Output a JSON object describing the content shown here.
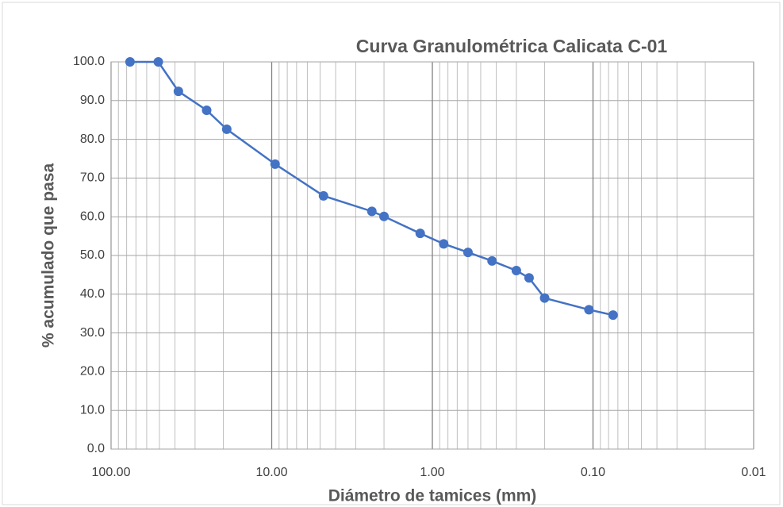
{
  "chart_data": {
    "type": "line",
    "title": "Curva Granulométrica Calicata C-01",
    "x_label": "Diámetro de tamices (mm)",
    "y_label": "% acumulado que pasa",
    "x": [
      76.2,
      50.8,
      38.1,
      25.4,
      19.05,
      9.525,
      4.76,
      2.38,
      2.0,
      1.19,
      0.85,
      0.6,
      0.425,
      0.3,
      0.25,
      0.2,
      0.106,
      0.075
    ],
    "values": [
      100,
      100,
      92.4,
      87.5,
      82.6,
      73.6,
      65.4,
      61.4,
      60.1,
      55.7,
      53.0,
      50.8,
      48.6,
      46.1,
      44.2,
      39.0,
      36.0,
      34.6
    ],
    "color": "#4472c4",
    "x_log": true,
    "minor_grid": true,
    "grid": true,
    "xlim": [
      100,
      0.01
    ],
    "xticks": [
      {
        "value": 100,
        "label": "100.00"
      },
      {
        "value": 10,
        "label": "10.00"
      },
      {
        "value": 1,
        "label": "1.00"
      },
      {
        "value": 0.1,
        "label": "0.10"
      },
      {
        "value": 0.01,
        "label": "0.01"
      }
    ],
    "ylim": [
      0,
      100
    ],
    "yticks": [
      {
        "value": 0,
        "label": "0.0"
      },
      {
        "value": 10,
        "label": "10.0"
      },
      {
        "value": 20,
        "label": "20.0"
      },
      {
        "value": 30,
        "label": "30.0"
      },
      {
        "value": 40,
        "label": "40.0"
      },
      {
        "value": 50,
        "label": "50.0"
      },
      {
        "value": 60,
        "label": "60.0"
      },
      {
        "value": 70,
        "label": "70.0"
      },
      {
        "value": 80,
        "label": "80.0"
      },
      {
        "value": 90,
        "label": "90.0"
      },
      {
        "value": 100,
        "label": "100.0"
      }
    ]
  }
}
